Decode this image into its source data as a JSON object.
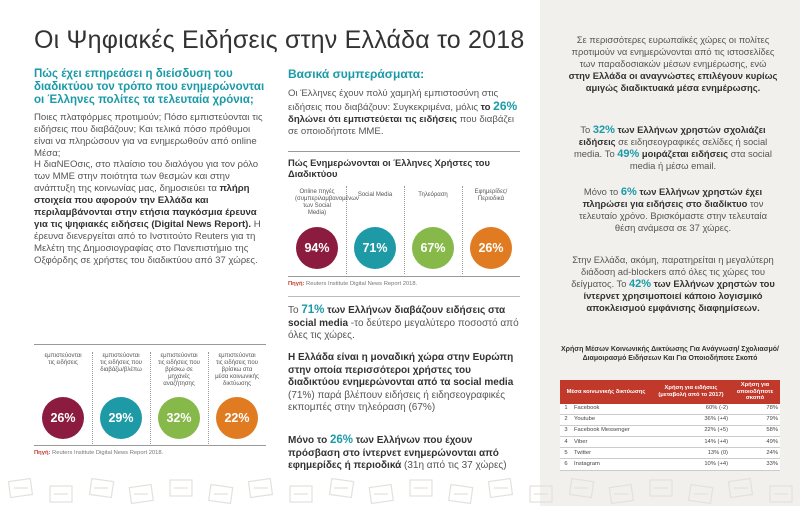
{
  "title": "Οι Ψηφιακές Ειδήσεις στην Ελλάδα το 2018",
  "col1": {
    "subhead": "Πώς έχει επηρεάσει η διείσδυση του διαδικτύου τον τρόπο που ενημερώνονται οι Έλληνες πολίτες τα τελευταία χρόνια;",
    "p1": "Ποιες πλατφόρμες προτιμούν; Πόσο εμπιστεύονται τις ειδήσεις που διαβάζουν; Και τελικά πόσο πρόθυμοι είναι να πληρώσουν για να ενημερωθούν από online Μέσα;",
    "p2_a": "Η διαΝΕΟσις, στο πλαίσιο του διαλόγου για τον ρόλο των ΜΜΕ στην ποιότητα των θεσμών και στην ανάπτυξη της κοινωνίας μας, δημοσιεύει τα ",
    "p2_b": "πλήρη στοιχεία που αφορούν την Ελλάδα και περιλαμβάνονται στην ετήσια παγκόσμια έρευνα για τις ψηφιακές ειδήσεις (Digital News Report).",
    "p2_c": " Η έρευνα διενεργείται από το Ινστιτούτο Reuters για τη Μελέτη της Δημοσιογραφίας στο Πανεπιστήμιο της Οξφόρδης σε χρήστες του διαδικτύου από 37 χώρες.",
    "trust_labels": [
      "εμπιστεύονται τις ειδήσεις",
      "εμπιστεύονται τις ειδήσεις που διαβάζω/βλέπω",
      "εμπιστεύονται τις ειδήσεις που βρίσκω σε μηχανές αναζήτησης",
      "εμπιστεύονται τις ειδήσεις που βρίσκω στα μέσα κοινωνικής δικτύωσης"
    ],
    "trust_values": [
      "26%",
      "29%",
      "32%",
      "22%"
    ],
    "source_label": "Πηγή:",
    "source_text": " Reuters Institute Digital News Report 2018."
  },
  "col2": {
    "subhead": "Βασικά συμπεράσματα:",
    "p1_a": "Οι Έλληνες έχουν πολύ χαμηλή εμπιστοσύνη στις ειδήσεις που διαβάζουν: Συγκεκριμένα, μόλις ",
    "p1_b": "το ",
    "p1_big": "26%",
    "p1_c": " δηλώνει ότι εμπιστεύεται τις ειδήσεις",
    "p1_d": " που διαβάζει σε οποιοδήποτε ΜΜΕ.",
    "chart_title": "Πώς Ενημερώνονται οι Έλληνες Χρήστες του Διαδικτύου",
    "chart_labels": [
      "Online πηγές (συμπεριλαμβανομένων των Social Media)",
      "Social Media",
      "Τηλεόραση",
      "Εφημερίδες/ Περιοδικά"
    ],
    "chart_values": [
      "94%",
      "71%",
      "67%",
      "26%"
    ],
    "source_label": "Πηγή:",
    "source_text": " Reuters Institute Digital News Report 2018.",
    "s1_a": "Το ",
    "s1_big": "71%",
    "s1_b": " των Ελλήνων διαβάζουν ειδήσεις στα social media",
    "s1_c": " -το δεύτερο μεγαλύτερο ποσοστό από όλες τις χώρες.",
    "s2_a": "Η Ελλάδα είναι η μοναδική χώρα στην Ευρώπη στην οποία περισσότεροι χρήστες του διαδικτύου ενημερώνονται από τα social media",
    "s2_b": " (71%) παρά βλέπουν ειδήσεις ή ειδησεογραφικές εκπομπές στην τηλεόραση (67%)",
    "s3_a": "Μόνο το ",
    "s3_big": "26%",
    "s3_b": " των Ελλήνων που έχουν πρόσβαση στο ίντερνετ ενημερώνονται από εφημερίδες ή περιοδικά",
    "s3_c": " (31η από τις 37 χώρες)"
  },
  "col3": {
    "p1_a": "Σε περισσότερες ευρωπαϊκές χώρες οι πολίτες προτιμούν να ενημερώνονται από τις ιστοσελίδες των παραδοσιακών μέσων ενημέρωσης, ενώ ",
    "p1_b": "στην Ελλάδα οι αναγνώστες επιλέγουν κυρίως αμιγώς διαδικτυακά μέσα ενημέρωσης.",
    "p2_a": "Το ",
    "p2_big1": "32%",
    "p2_b": " των Ελλήνων χρηστών σχολιάζει ειδήσεις",
    "p2_c": " σε ειδησεογραφικές σελίδες ή social media. Το ",
    "p2_big2": "49%",
    "p2_d": " μοιράζεται ειδήσεις",
    "p2_e": " στα social media ή μέσω email.",
    "p3_a": "Μόνο το ",
    "p3_big": "6%",
    "p3_b": " των Ελλήνων χρηστών έχει πληρώσει για ειδήσεις στο διαδίκτυο",
    "p3_c": " τον τελευταίο χρόνο. Βρισκόμαστε στην τελευταία θέση ανάμεσα σε 37 χώρες.",
    "p4_a": "Στην Ελλάδα, ακόμη, παρατηρείται η μεγαλύτερη διάδοση ad-blockers από όλες τις χώρες του δείγματος. Το ",
    "p4_big": "42%",
    "p4_b": " των Ελλήνων χρηστών του ίντερνετ χρησιμοποιεί κάποιο λογισμικό αποκλεισμού εμφάνισης διαφημίσεων.",
    "table_title": "Χρήση Μέσων Κοινωνικής Δικτύωσης Για Ανάγνωση/ Σχολιασμό/Διαμοιρασμό Ειδήσεων Και Για Οποιοδήποτε Σκοπό",
    "table_headers": [
      "Μέσα κοινωνικής δικτύωσης",
      "Χρήση για ειδήσεις (μεταβολή από το 2017)",
      "Χρήση για οποιοδήποτε σκοπό"
    ],
    "table_rows": [
      {
        "n": "1",
        "name": "Facebook",
        "news": "60% (-2)",
        "any": "78%"
      },
      {
        "n": "2",
        "name": "Youtube",
        "news": "36% (+4)",
        "any": "79%"
      },
      {
        "n": "3",
        "name": "Facebook Messenger",
        "news": "22% (+5)",
        "any": "58%"
      },
      {
        "n": "4",
        "name": "Viber",
        "news": "14% (+4)",
        "any": "49%"
      },
      {
        "n": "5",
        "name": "Twitter",
        "news": "13% (0)",
        "any": "24%"
      },
      {
        "n": "6",
        "name": "Instagram",
        "news": "10% (+4)",
        "any": "33%"
      }
    ]
  },
  "colors": {
    "accent": "#1a9aa8",
    "maroon": "#8b1c3f",
    "teal_circle": "#1d9aa6",
    "green": "#86b84a",
    "orange": "#e07b22",
    "table_header": "#c0392b"
  },
  "decor": {
    "icon": "newspaper-doodle-icon"
  }
}
